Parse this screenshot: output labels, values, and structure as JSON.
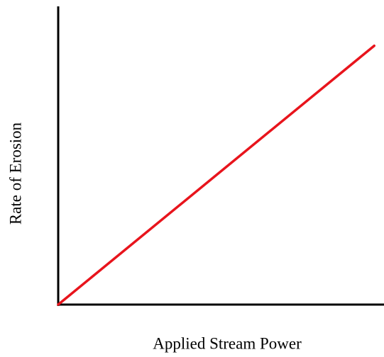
{
  "chart_data": {
    "type": "line",
    "x_label": "Applied Stream Power",
    "y_label": "Rate of Erosion",
    "x": [
      0,
      97
    ],
    "values": [
      0,
      87
    ],
    "color": "#e8141c",
    "xlim": [
      0,
      100
    ],
    "ylim": [
      0,
      100
    ]
  }
}
